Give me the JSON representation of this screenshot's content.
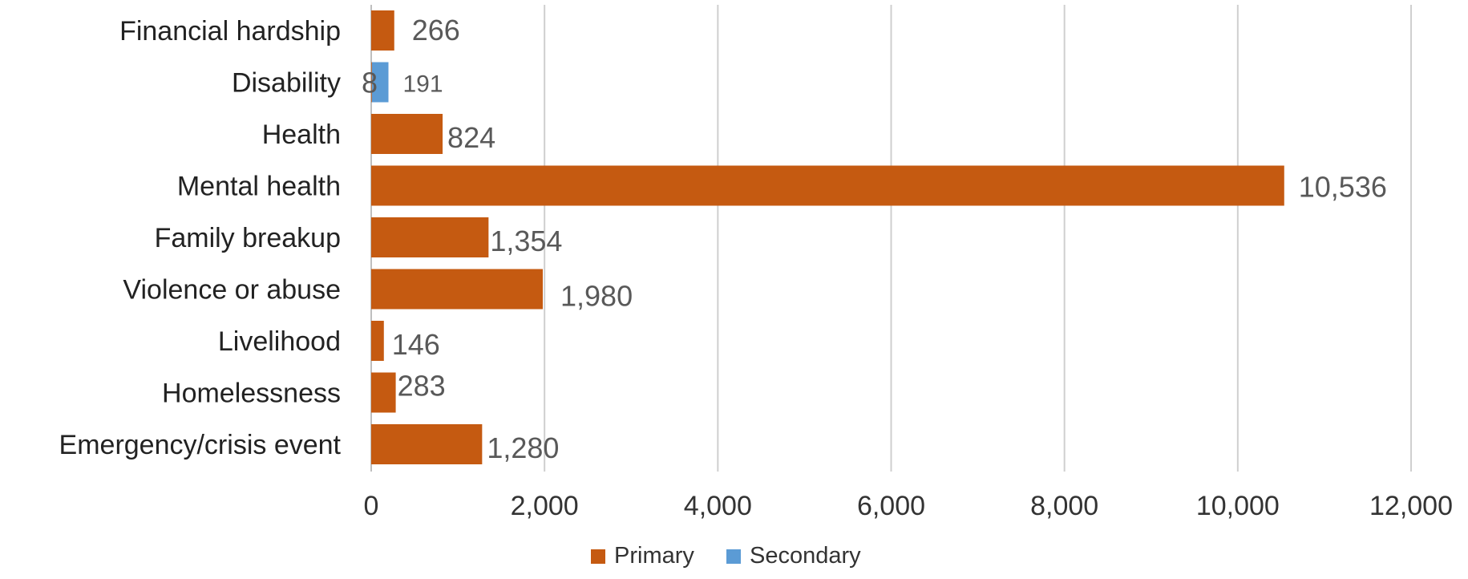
{
  "chart_data": {
    "type": "bar",
    "orientation": "horizontal",
    "categories": [
      "Financial hardship",
      "Disability",
      "Health",
      "Mental health",
      "Family breakup",
      "Violence or abuse",
      "Livelihood",
      "Homelessness",
      "Emergency/crisis event"
    ],
    "series": [
      {
        "name": "Primary",
        "color": "#C55A11",
        "values": [
          266,
          8,
          824,
          10536,
          1354,
          1980,
          146,
          283,
          1280
        ],
        "labels": [
          "266",
          "8",
          "824",
          "10,536",
          "1,354",
          "1,980",
          "146",
          "283",
          "1,280"
        ]
      },
      {
        "name": "Secondary",
        "color": "#5B9BD5",
        "values": [
          null,
          191,
          null,
          null,
          null,
          null,
          null,
          null,
          null
        ],
        "labels": [
          "",
          "191",
          "",
          "",
          "",
          "",
          "",
          "",
          ""
        ]
      }
    ],
    "xlim": [
      0,
      12000
    ],
    "x_ticks": [
      0,
      2000,
      4000,
      6000,
      8000,
      10000,
      12000
    ],
    "x_tick_labels": [
      "0",
      "2,000",
      "4,000",
      "6,000",
      "8,000",
      "10,000",
      "12,000"
    ],
    "title": "",
    "xlabel": "",
    "ylabel": "",
    "grid": "vertical",
    "legend_position": "bottom"
  }
}
